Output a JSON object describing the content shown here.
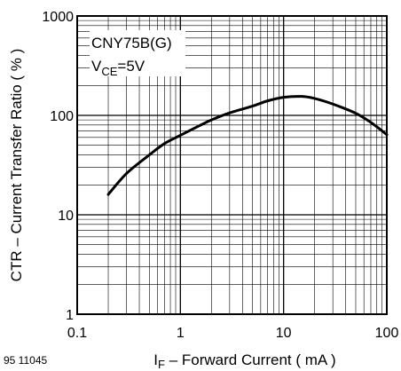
{
  "figure_id": "95 11045",
  "chart_data": {
    "type": "line",
    "title": "",
    "xlabel": {
      "main": "I",
      "sub": "F",
      "rest": " – Forward Current ( mA )"
    },
    "ylabel": "CTR – Current Transfer Ratio ( % )",
    "x_scale": "log",
    "y_scale": "log",
    "xlim": [
      0.1,
      100
    ],
    "ylim": [
      1,
      1000
    ],
    "x_ticks": [
      {
        "value": 0.1,
        "label": "0.1"
      },
      {
        "value": 1,
        "label": "1"
      },
      {
        "value": 10,
        "label": "10"
      },
      {
        "value": 100,
        "label": "100"
      }
    ],
    "y_ticks": [
      {
        "value": 1,
        "label": "1"
      },
      {
        "value": 10,
        "label": "10"
      },
      {
        "value": 100,
        "label": "100"
      },
      {
        "value": 1000,
        "label": "1000"
      }
    ],
    "grid": true,
    "annotation": {
      "line1": "CNY75B(G)",
      "line2_main": "V",
      "line2_sub": "CE",
      "line2_rest": "=5V",
      "placement": "top-left"
    },
    "series": [
      {
        "color": "#000000",
        "x": [
          0.2,
          0.3,
          0.5,
          0.7,
          1,
          1.5,
          2,
          3,
          5,
          7,
          10,
          15,
          20,
          30,
          50,
          70,
          100
        ],
        "y": [
          16,
          26,
          40,
          52,
          63,
          78,
          90,
          106,
          124,
          140,
          152,
          155,
          148,
          130,
          105,
          85,
          64
        ]
      }
    ]
  }
}
